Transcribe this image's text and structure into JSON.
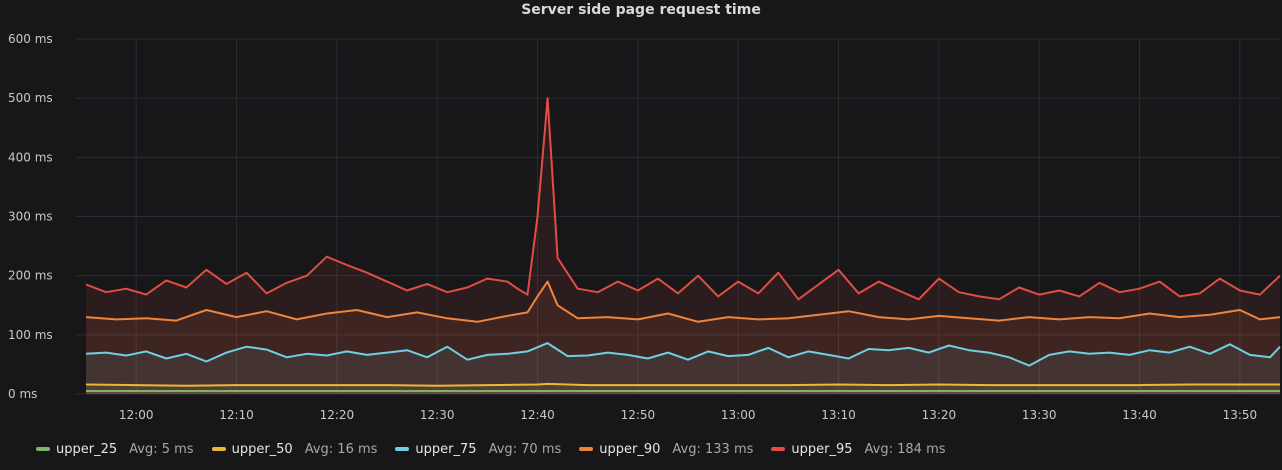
{
  "chart_data": {
    "type": "line",
    "title": "Server side page request time",
    "xlabel": "",
    "ylabel": "",
    "x_ticks": [
      "12:00",
      "12:10",
      "12:20",
      "12:30",
      "12:40",
      "12:50",
      "13:00",
      "13:10",
      "13:20",
      "13:30",
      "13:40",
      "13:50"
    ],
    "x_range": [
      "11:54",
      "13:54"
    ],
    "y_ticks": [
      "0 ms",
      "100 ms",
      "200 ms",
      "300 ms",
      "400 ms",
      "500 ms",
      "600 ms"
    ],
    "ylim": [
      0,
      600
    ],
    "grid": true,
    "legend_position": "bottom",
    "series": [
      {
        "name": "upper_25",
        "avg_label": "Avg: 5 ms",
        "color": "#7eb26d",
        "x": [
          "11:55",
          "12:05",
          "12:15",
          "12:25",
          "12:35",
          "12:45",
          "12:55",
          "13:05",
          "13:15",
          "13:25",
          "13:35",
          "13:45",
          "13:54"
        ],
        "values": [
          5,
          5,
          5,
          5,
          5,
          5,
          5,
          5,
          5,
          5,
          5,
          5,
          5
        ]
      },
      {
        "name": "upper_50",
        "avg_label": "Avg: 16 ms",
        "color": "#eab839",
        "x": [
          "11:55",
          "12:00",
          "12:05",
          "12:10",
          "12:15",
          "12:20",
          "12:25",
          "12:30",
          "12:35",
          "12:40",
          "12:41",
          "12:45",
          "12:50",
          "12:55",
          "13:00",
          "13:05",
          "13:10",
          "13:15",
          "13:20",
          "13:25",
          "13:30",
          "13:35",
          "13:40",
          "13:45",
          "13:50",
          "13:54"
        ],
        "values": [
          16,
          15,
          14,
          15,
          15,
          15,
          15,
          14,
          15,
          16,
          17,
          15,
          15,
          15,
          15,
          15,
          16,
          15,
          16,
          15,
          15,
          15,
          15,
          16,
          16,
          16
        ]
      },
      {
        "name": "upper_75",
        "avg_label": "Avg: 70 ms",
        "color": "#6ed0e0",
        "x": [
          "11:55",
          "11:57",
          "11:59",
          "12:01",
          "12:03",
          "12:05",
          "12:07",
          "12:09",
          "12:11",
          "12:13",
          "12:15",
          "12:17",
          "12:19",
          "12:21",
          "12:23",
          "12:25",
          "12:27",
          "12:29",
          "12:31",
          "12:33",
          "12:35",
          "12:37",
          "12:39",
          "12:41",
          "12:43",
          "12:45",
          "12:47",
          "12:49",
          "12:51",
          "12:53",
          "12:55",
          "12:57",
          "12:59",
          "13:01",
          "13:03",
          "13:05",
          "13:07",
          "13:09",
          "13:11",
          "13:13",
          "13:15",
          "13:17",
          "13:19",
          "13:21",
          "13:23",
          "13:25",
          "13:27",
          "13:29",
          "13:31",
          "13:33",
          "13:35",
          "13:37",
          "13:39",
          "13:41",
          "13:43",
          "13:45",
          "13:47",
          "13:49",
          "13:51",
          "13:53",
          "13:54"
        ],
        "values": [
          68,
          70,
          65,
          72,
          60,
          68,
          55,
          70,
          80,
          75,
          62,
          68,
          65,
          72,
          66,
          70,
          74,
          62,
          80,
          58,
          66,
          68,
          72,
          86,
          64,
          65,
          70,
          66,
          60,
          70,
          58,
          72,
          64,
          66,
          78,
          62,
          72,
          66,
          60,
          76,
          74,
          78,
          70,
          82,
          74,
          70,
          62,
          48,
          66,
          72,
          68,
          70,
          66,
          74,
          70,
          80,
          68,
          84,
          66,
          62,
          80
        ]
      },
      {
        "name": "upper_90",
        "avg_label": "Avg: 133 ms",
        "color": "#ef843c",
        "x": [
          "11:55",
          "11:58",
          "12:01",
          "12:04",
          "12:07",
          "12:10",
          "12:13",
          "12:16",
          "12:19",
          "12:22",
          "12:25",
          "12:28",
          "12:31",
          "12:34",
          "12:37",
          "12:39",
          "12:40",
          "12:41",
          "12:42",
          "12:44",
          "12:47",
          "12:50",
          "12:53",
          "12:56",
          "12:59",
          "13:02",
          "13:05",
          "13:08",
          "13:11",
          "13:14",
          "13:17",
          "13:20",
          "13:23",
          "13:26",
          "13:29",
          "13:32",
          "13:35",
          "13:38",
          "13:41",
          "13:44",
          "13:47",
          "13:50",
          "13:52",
          "13:54"
        ],
        "values": [
          130,
          126,
          128,
          124,
          142,
          130,
          140,
          126,
          136,
          142,
          130,
          138,
          128,
          122,
          132,
          138,
          165,
          190,
          150,
          128,
          130,
          126,
          136,
          122,
          130,
          126,
          128,
          134,
          140,
          130,
          126,
          132,
          128,
          124,
          130,
          126,
          130,
          128,
          136,
          130,
          134,
          142,
          126,
          130
        ]
      },
      {
        "name": "upper_95",
        "avg_label": "Avg: 184 ms",
        "color": "#e24d42",
        "x": [
          "11:55",
          "11:57",
          "11:59",
          "12:01",
          "12:03",
          "12:05",
          "12:07",
          "12:09",
          "12:11",
          "12:13",
          "12:15",
          "12:17",
          "12:19",
          "12:21",
          "12:23",
          "12:25",
          "12:27",
          "12:29",
          "12:31",
          "12:33",
          "12:35",
          "12:37",
          "12:38",
          "12:39",
          "12:40",
          "12:41",
          "12:42",
          "12:44",
          "12:46",
          "12:48",
          "12:50",
          "12:52",
          "12:54",
          "12:56",
          "12:58",
          "13:00",
          "13:02",
          "13:04",
          "13:06",
          "13:08",
          "13:10",
          "13:12",
          "13:14",
          "13:16",
          "13:18",
          "13:20",
          "13:22",
          "13:24",
          "13:26",
          "13:28",
          "13:30",
          "13:32",
          "13:34",
          "13:36",
          "13:38",
          "13:40",
          "13:42",
          "13:44",
          "13:46",
          "13:48",
          "13:50",
          "13:52",
          "13:54"
        ],
        "values": [
          185,
          172,
          178,
          168,
          192,
          180,
          210,
          186,
          205,
          170,
          188,
          200,
          232,
          218,
          205,
          190,
          175,
          186,
          172,
          180,
          195,
          190,
          178,
          168,
          300,
          500,
          230,
          178,
          172,
          190,
          175,
          195,
          170,
          200,
          165,
          190,
          170,
          205,
          160,
          185,
          210,
          170,
          190,
          175,
          160,
          195,
          172,
          165,
          160,
          180,
          168,
          175,
          165,
          188,
          172,
          178,
          190,
          165,
          170,
          195,
          175,
          168,
          200
        ]
      }
    ]
  }
}
